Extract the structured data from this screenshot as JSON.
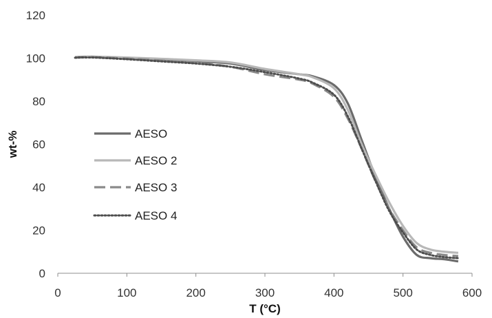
{
  "chart_data": {
    "type": "line",
    "title": "",
    "xlabel": "T (°C)",
    "ylabel": "wt-%",
    "xlim": [
      0,
      600
    ],
    "ylim": [
      0,
      120
    ],
    "xticks": [
      0,
      100,
      200,
      300,
      400,
      500,
      600
    ],
    "yticks": [
      0,
      20,
      40,
      60,
      80,
      100,
      120
    ],
    "grid": false,
    "legend": "left",
    "series": [
      {
        "name": "AESO",
        "color": "#6b6b6b",
        "dash": "solid",
        "x": [
          25,
          50,
          100,
          150,
          200,
          250,
          300,
          350,
          370,
          400,
          420,
          440,
          460,
          480,
          500,
          520,
          540,
          560,
          580
        ],
        "y": [
          100.5,
          100.7,
          100.2,
          99.4,
          98.5,
          97.5,
          94.5,
          92.5,
          91.5,
          87.5,
          79,
          62,
          45,
          30,
          17,
          8.5,
          7,
          6.5,
          5.5
        ]
      },
      {
        "name": "AESO 2",
        "color": "#b8b8b8",
        "dash": "solid",
        "x": [
          25,
          50,
          100,
          150,
          200,
          250,
          300,
          350,
          370,
          400,
          420,
          440,
          460,
          480,
          500,
          520,
          540,
          560,
          580
        ],
        "y": [
          100.4,
          100.6,
          100.3,
          99.7,
          99,
          98,
          95,
          92.5,
          91,
          86,
          76,
          60,
          46,
          33,
          22,
          14,
          11,
          10,
          9.5
        ]
      },
      {
        "name": "AESO 3",
        "color": "#8a8a8a",
        "dash": "dashed",
        "x": [
          25,
          50,
          100,
          150,
          200,
          250,
          300,
          350,
          370,
          400,
          420,
          440,
          460,
          480,
          500,
          520,
          540,
          560,
          580
        ],
        "y": [
          100.3,
          100.5,
          99.8,
          98.9,
          97.8,
          96,
          92.5,
          90,
          88,
          82,
          72,
          58,
          43,
          30,
          20,
          12,
          9.5,
          8.5,
          8
        ]
      },
      {
        "name": "AESO 4",
        "color": "#4d4d4d",
        "dash": "dotted",
        "x": [
          25,
          50,
          100,
          150,
          200,
          250,
          300,
          350,
          370,
          400,
          420,
          440,
          460,
          480,
          500,
          520,
          540,
          560,
          580
        ],
        "y": [
          100.2,
          100.3,
          99.5,
          98.5,
          97.5,
          96,
          93.5,
          90.5,
          88.5,
          83,
          73,
          58,
          43,
          29,
          19,
          11,
          8.5,
          7.5,
          7
        ]
      }
    ]
  }
}
